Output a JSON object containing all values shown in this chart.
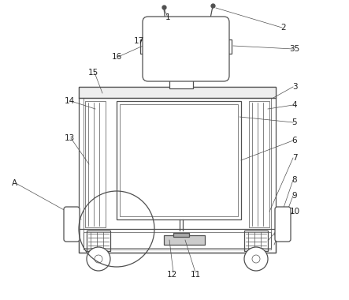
{
  "bg_color": "#ffffff",
  "line_color": "#505050",
  "line_width": 0.9,
  "thin_line": 0.5,
  "label_color": "#222222",
  "figsize": [
    4.43,
    3.8
  ],
  "dpi": 100
}
